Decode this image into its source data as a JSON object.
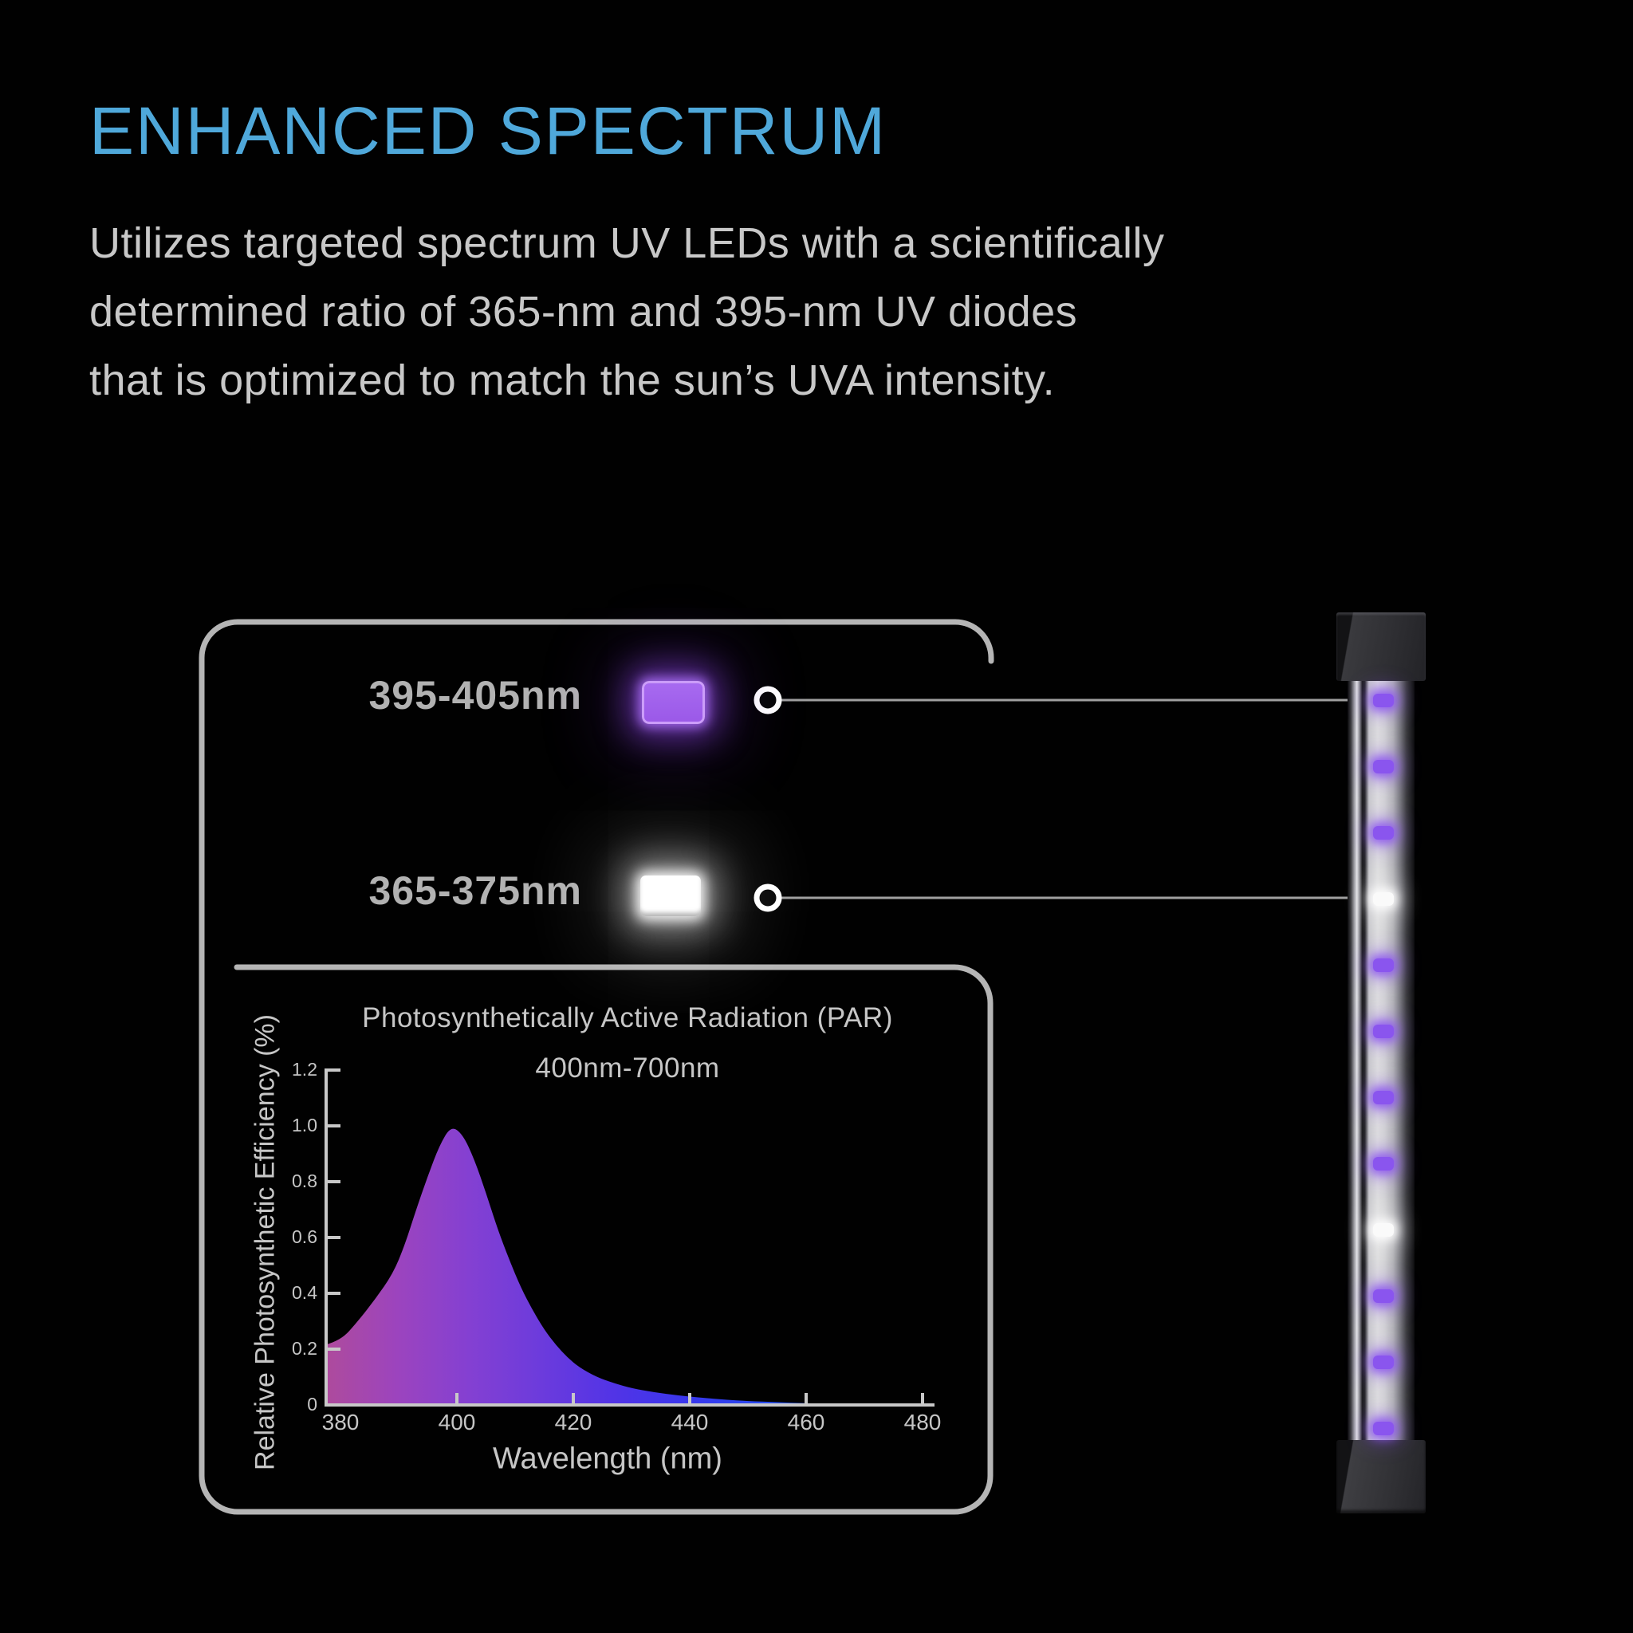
{
  "header": {
    "title": "ENHANCED SPECTRUM",
    "title_color": "#4FA8DA",
    "paragraph_lines": [
      "Utilizes targeted spectrum UV LEDs with a scientifically",
      "determined ratio of 365-nm and 395-nm UV diodes",
      "that is optimized to match the sun’s UVA intensity."
    ],
    "paragraph_color": "#C8C8C8"
  },
  "diagram": {
    "frame_color": "#B5B5B5",
    "connector_color": "#A0A0A0",
    "connector_dot": {
      "ring": "#FFFFFF",
      "fill": "#050505"
    },
    "legend": [
      {
        "label": "395-405nm",
        "chip_color": "#9B59E8",
        "chip_type": "uv-purple-led",
        "connects_to_led_index": 1
      },
      {
        "label": "365-375nm",
        "chip_color": "#FFFFFF",
        "chip_type": "uv-white-led",
        "connects_to_led_index": 4
      }
    ]
  },
  "chart_data": {
    "type": "area",
    "title": "Photosynthetically Active Radiation (PAR)",
    "subtitle": "400nm-700nm",
    "xlabel": "Wavelength (nm)",
    "ylabel": "Relative Photosynthetic Efficiency (%)",
    "xlim": [
      380,
      480
    ],
    "ylim": [
      0,
      1.2
    ],
    "xticks": [
      380,
      400,
      420,
      440,
      460,
      480
    ],
    "yticks": [
      0,
      0.2,
      0.4,
      0.6,
      0.8,
      1.0,
      1.2
    ],
    "grid": false,
    "legend_position": "none",
    "axis_color": "#C8C8C8",
    "peak": {
      "x": 399,
      "y": 1.0
    },
    "fill_gradient": [
      "#AE4B9C",
      "#9C44BE",
      "#8440D2",
      "#6C3BDC",
      "#5234E6",
      "#3A36EC",
      "#2847F0",
      "#1F5BF4",
      "#2E79F7"
    ],
    "series": [
      {
        "name": "Relative photosynthetic efficiency",
        "x": [
          380,
          383,
          386,
          389,
          391,
          393,
          395,
          397,
          399,
          401,
          403,
          405,
          407,
          409,
          411,
          413,
          415,
          417,
          419,
          421,
          424,
          427,
          430,
          434,
          438,
          442,
          446,
          450,
          455,
          460,
          465,
          470,
          475,
          480
        ],
        "y": [
          0.23,
          0.3,
          0.38,
          0.47,
          0.57,
          0.7,
          0.82,
          0.93,
          1.0,
          0.97,
          0.88,
          0.76,
          0.63,
          0.52,
          0.42,
          0.34,
          0.27,
          0.215,
          0.17,
          0.135,
          0.1,
          0.078,
          0.06,
          0.045,
          0.034,
          0.026,
          0.019,
          0.014,
          0.01,
          0.006,
          0.004,
          0.002,
          0.001,
          0.0
        ]
      }
    ]
  },
  "led_bar": {
    "led_pattern": [
      "purple",
      "purple",
      "purple",
      "white",
      "purple",
      "purple",
      "purple",
      "purple",
      "white",
      "purple",
      "purple",
      "purple"
    ],
    "purple_color": "#8A55EE",
    "white_color": "#FAFAFA"
  }
}
